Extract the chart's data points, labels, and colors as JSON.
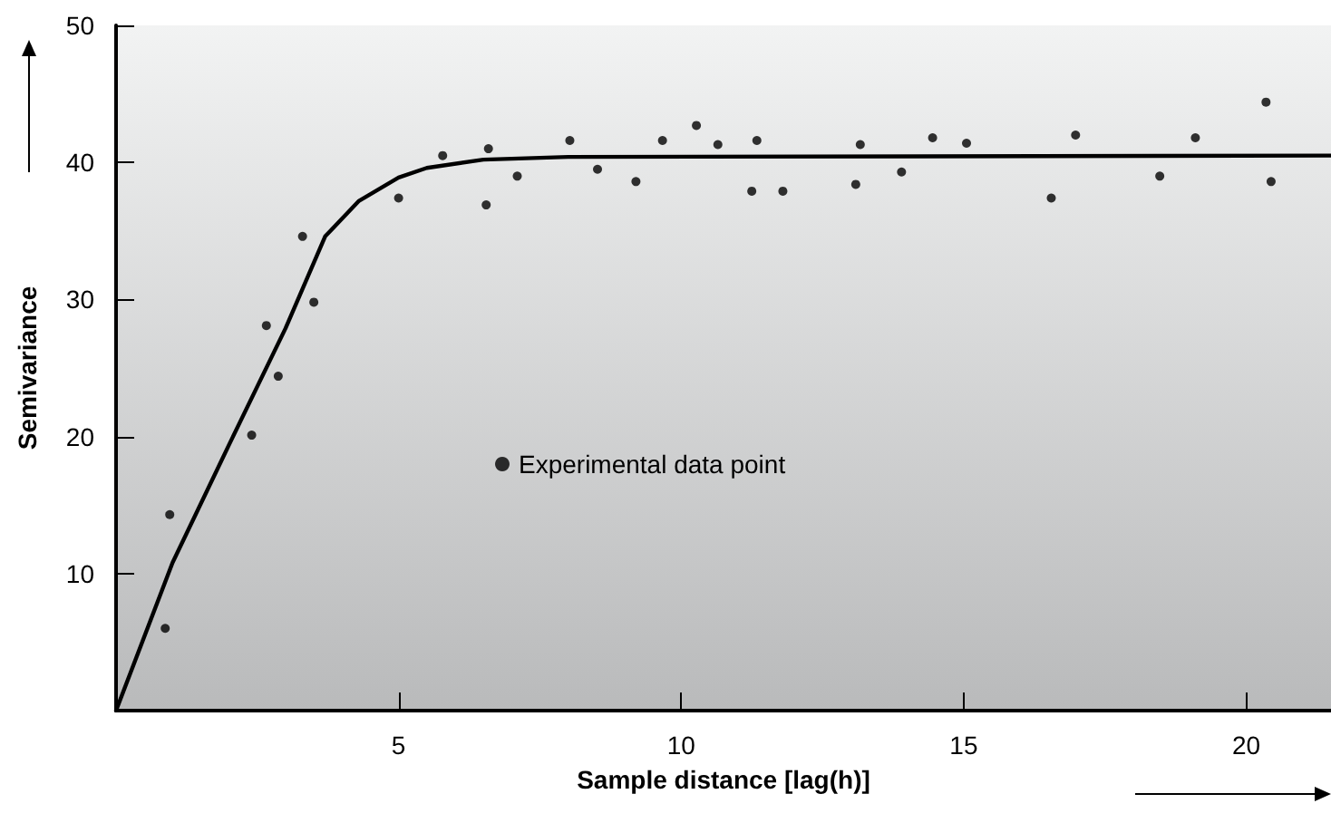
{
  "chart_data": {
    "type": "scatter",
    "xlabel": "Sample distance [lag(h)]",
    "ylabel": "Semivariance",
    "xlim": [
      0,
      21.5
    ],
    "ylim": [
      0,
      50
    ],
    "xticks": [
      5,
      10,
      15,
      20
    ],
    "yticks": [
      10,
      20,
      30,
      40,
      50
    ],
    "grid": false,
    "legend": "center",
    "series": [
      {
        "name": "Experimental data point",
        "marker": "circle",
        "color": "#000000",
        "x": [
          0.87,
          0.95,
          2.4,
          2.66,
          2.87,
          3.3,
          3.5,
          5.0,
          5.78,
          6.55,
          6.59,
          7.1,
          8.03,
          8.52,
          9.2,
          9.67,
          10.27,
          10.65,
          11.25,
          11.34,
          11.8,
          13.09,
          13.17,
          13.9,
          14.45,
          15.05,
          16.55,
          16.98,
          18.47,
          19.1,
          20.35,
          20.44
        ],
        "values": [
          6.0,
          14.3,
          20.1,
          28.1,
          24.4,
          34.6,
          29.8,
          37.4,
          40.5,
          36.9,
          41.0,
          39.0,
          41.6,
          39.5,
          38.6,
          41.6,
          42.7,
          41.3,
          37.9,
          41.6,
          37.9,
          38.4,
          41.3,
          39.3,
          41.8,
          41.4,
          37.4,
          42.0,
          39.0,
          41.8,
          44.4,
          38.6
        ]
      },
      {
        "type": "line",
        "marker": "none",
        "line_style": "solid",
        "color": "#000000",
        "x": [
          0,
          1,
          2,
          3,
          3.7,
          4.3,
          5,
          5.5,
          6.5,
          8,
          21.5
        ],
        "values": [
          0,
          10.8,
          19.4,
          27.9,
          34.6,
          37.2,
          38.9,
          39.6,
          40.2,
          40.4,
          40.5
        ]
      }
    ]
  }
}
